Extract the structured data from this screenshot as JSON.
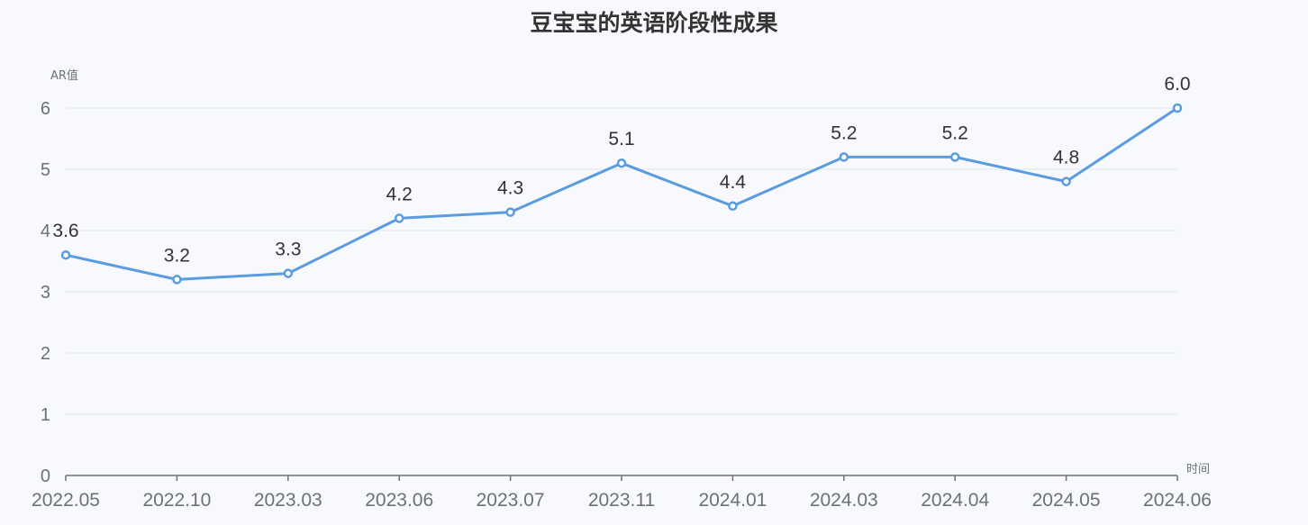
{
  "chart_data": {
    "type": "line",
    "title": "豆宝宝的英语阶段性成果",
    "ylabel": "AR值",
    "xlabel": "时间",
    "categories": [
      "2022.05",
      "2022.10",
      "2023.03",
      "2023.06",
      "2023.07",
      "2023.11",
      "2024.01",
      "2024.03",
      "2024.04",
      "2024.05",
      "2024.06"
    ],
    "values": [
      3.6,
      3.2,
      3.3,
      4.2,
      4.3,
      5.1,
      4.4,
      5.2,
      5.2,
      4.8,
      6.0
    ],
    "value_labels": [
      "3.6",
      "3.2",
      "3.3",
      "4.2",
      "4.3",
      "5.1",
      "4.4",
      "5.2",
      "5.2",
      "4.8",
      "6.0"
    ],
    "ylim": [
      0,
      6
    ],
    "yticks": [
      0,
      1,
      2,
      3,
      4,
      5,
      6
    ],
    "grid": true,
    "legend": "none",
    "colors": {
      "line": "#5b9be0",
      "grid": "#e0e6f1",
      "axis": "#6e7079"
    }
  }
}
